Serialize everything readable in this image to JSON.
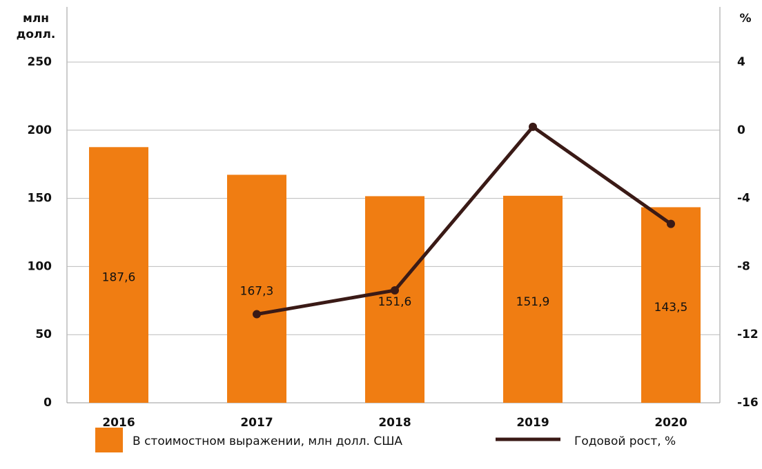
{
  "chart_data": {
    "type": "bar_line",
    "ylabel": [
      "млн",
      "долл."
    ],
    "y2label": "%",
    "categories": [
      "2016",
      "2017",
      "2018",
      "2019",
      "2020"
    ],
    "series": [
      {
        "name": "В стоимостном выражении, млн долл. США",
        "type": "bar",
        "color": "#f07d12",
        "values": [
          187.6,
          167.3,
          151.6,
          151.9,
          143.5
        ],
        "value_labels": [
          "187,6",
          "167,3",
          "151,6",
          "151,9",
          "143,5"
        ]
      },
      {
        "name": "Годовой рост, %",
        "type": "line",
        "color": "#3a1a16",
        "axis": "y2",
        "values": [
          null,
          -10.8,
          -9.4,
          0.2,
          -5.5
        ]
      }
    ],
    "ylim": [
      0,
      250
    ],
    "yticks": [
      0,
      50,
      100,
      150,
      200,
      250
    ],
    "y2lim": [
      -16,
      4
    ],
    "y2ticks": [
      -16,
      -12,
      -8,
      -4,
      0,
      4
    ],
    "grid": true,
    "legend": "bottom"
  }
}
